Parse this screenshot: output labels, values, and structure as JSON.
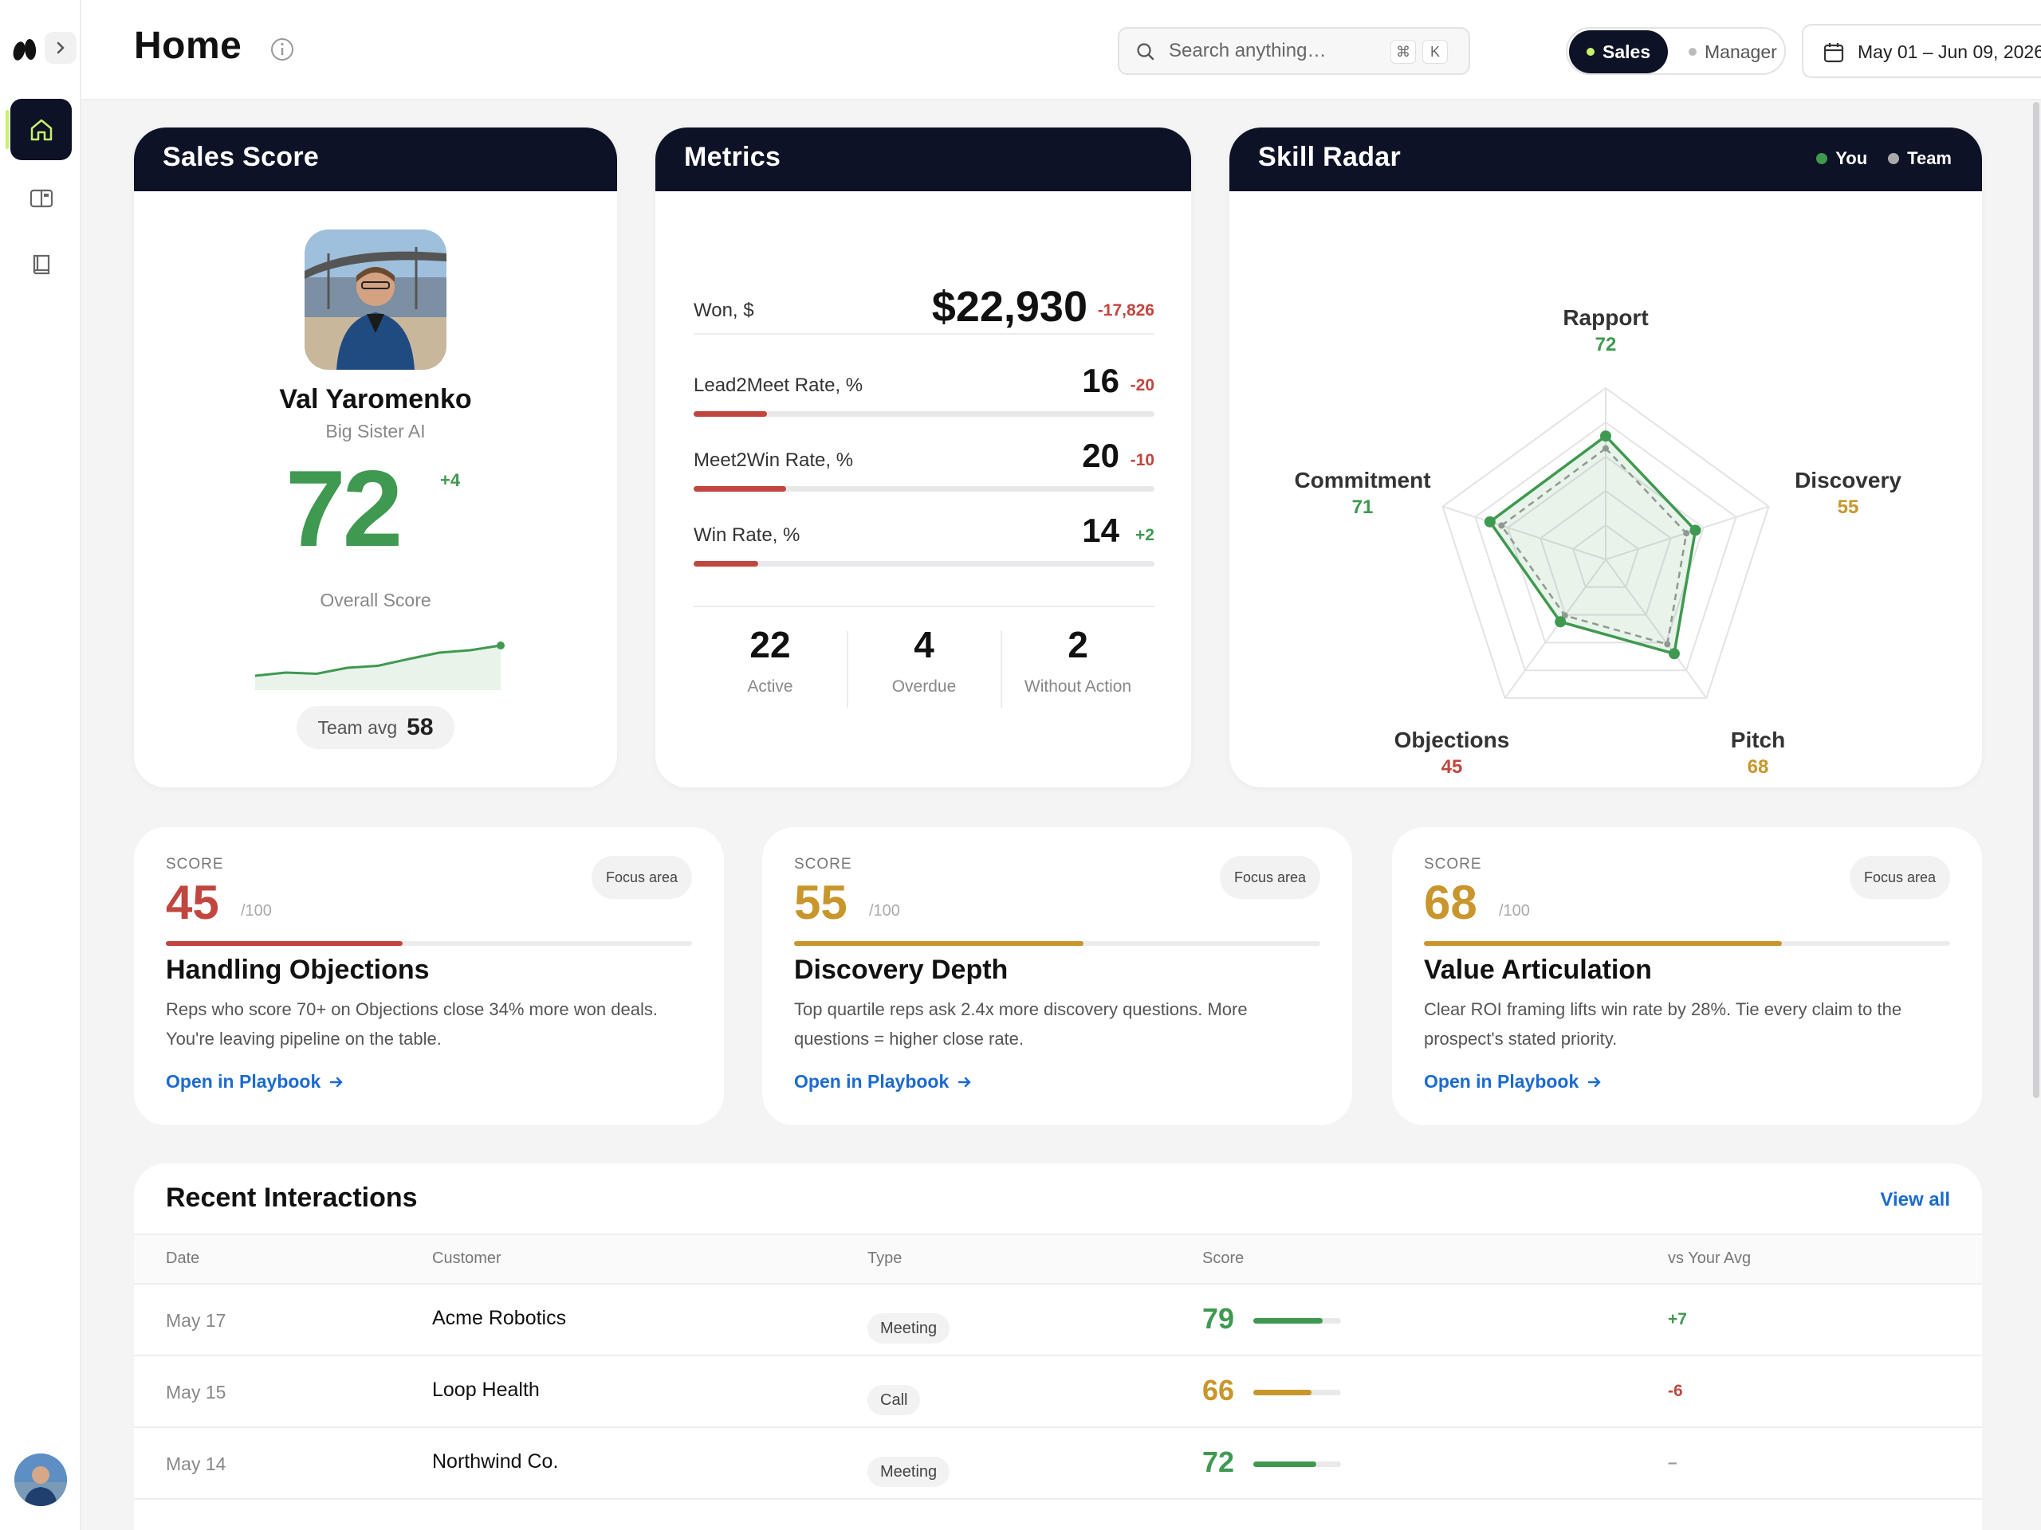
{
  "header": {
    "title": "Home",
    "search_placeholder": "Search anything…",
    "kbd_cmd": "⌘",
    "kbd_k": "K",
    "roles": [
      "Sales",
      "Manager"
    ],
    "active_role": "Sales",
    "date_range": "May 01 – Jun 09, 2026"
  },
  "sidebar": {
    "items": [
      "home-icon",
      "split-panel-icon",
      "book-icon"
    ],
    "active": "home-icon"
  },
  "sales_score": {
    "title": "Sales Score",
    "name": "Val Yaromenko",
    "org": "Big Sister AI",
    "score": "72",
    "delta": "+4",
    "overall_label": "Overall Score",
    "team_avg_label": "Team avg",
    "team_avg_value": "58",
    "trend": [
      0.2,
      0.28,
      0.25,
      0.4,
      0.45,
      0.62,
      0.78,
      0.84,
      0.96
    ]
  },
  "metrics": {
    "title": "Metrics",
    "rows": [
      {
        "label": "Won, $",
        "value": "$22,930",
        "delta": "-17,826"
      },
      {
        "label": "Lead2Meet Rate, %",
        "value": "16",
        "delta": "-20",
        "fill": 0.16
      },
      {
        "label": "Meet2Win Rate, %",
        "value": "20",
        "delta": "-10",
        "fill": 0.2
      },
      {
        "label": "Win Rate, %",
        "value": "14",
        "delta": "+2",
        "fill": 0.14
      }
    ],
    "counts": [
      {
        "n": "22",
        "label": "Active"
      },
      {
        "n": "4",
        "label": "Overdue"
      },
      {
        "n": "2",
        "label": "Without Action"
      }
    ]
  },
  "radar": {
    "title": "Skill Radar",
    "legend": [
      "You",
      "Team"
    ],
    "axes": [
      {
        "label": "Rapport",
        "value": "72",
        "color": "#3f9950"
      },
      {
        "label": "Discovery",
        "value": "55",
        "color": "#c8962c"
      },
      {
        "label": "Pitch",
        "value": "68",
        "color": "#c8962c"
      },
      {
        "label": "Objections",
        "value": "45",
        "color": "#c0463f"
      },
      {
        "label": "Commitment",
        "value": "71",
        "color": "#3f9950"
      }
    ]
  },
  "focus_cards": [
    {
      "kicker": "SCORE",
      "score": "45",
      "of": "/100",
      "pill": "Focus area",
      "title": "Handling Objections",
      "desc": "Reps who score 70+ on Objections close 34% more won deals. You're leaving pipeline on the table.",
      "link": "Open in Playbook",
      "color": "#c0463f",
      "fill": 0.45
    },
    {
      "kicker": "SCORE",
      "score": "55",
      "of": "/100",
      "pill": "Focus area",
      "title": "Discovery Depth",
      "desc": "Top quartile reps ask 2.4x more discovery questions. More questions = higher close rate.",
      "link": "Open in Playbook",
      "color": "#c8962c",
      "fill": 0.55
    },
    {
      "kicker": "SCORE",
      "score": "68",
      "of": "/100",
      "pill": "Focus area",
      "title": "Value Articulation",
      "desc": "Clear ROI framing lifts win rate by 28%. Tie every claim to the prospect's stated priority.",
      "link": "Open in Playbook",
      "color": "#c8962c",
      "fill": 0.68
    }
  ],
  "interactions": {
    "title": "Recent Interactions",
    "view_all": "View all",
    "columns": [
      "Date",
      "Customer",
      "Type",
      "Score",
      "vs Your Avg"
    ],
    "rows": [
      {
        "date": "May 17",
        "customer": "Acme Robotics",
        "type": "Meeting",
        "score": "79",
        "vs": "+7",
        "color": "#3f9950",
        "vs_color": "#3f9950",
        "fill": 0.79
      },
      {
        "date": "May 15",
        "customer": "Loop Health",
        "type": "Call",
        "score": "66",
        "vs": "-6",
        "color": "#c8962c",
        "vs_color": "#c0463f",
        "fill": 0.66
      },
      {
        "date": "May 14",
        "customer": "Northwind Co.",
        "type": "Meeting",
        "score": "72",
        "vs": "–",
        "color": "#3f9950",
        "vs_color": "#999999",
        "fill": 0.72
      }
    ]
  },
  "colors": {
    "navy": "#0d1226",
    "green": "#3f9950",
    "amber": "#c8962c",
    "red": "#c0463f",
    "lime": "#c8f26a",
    "link": "#1b6ad0"
  }
}
